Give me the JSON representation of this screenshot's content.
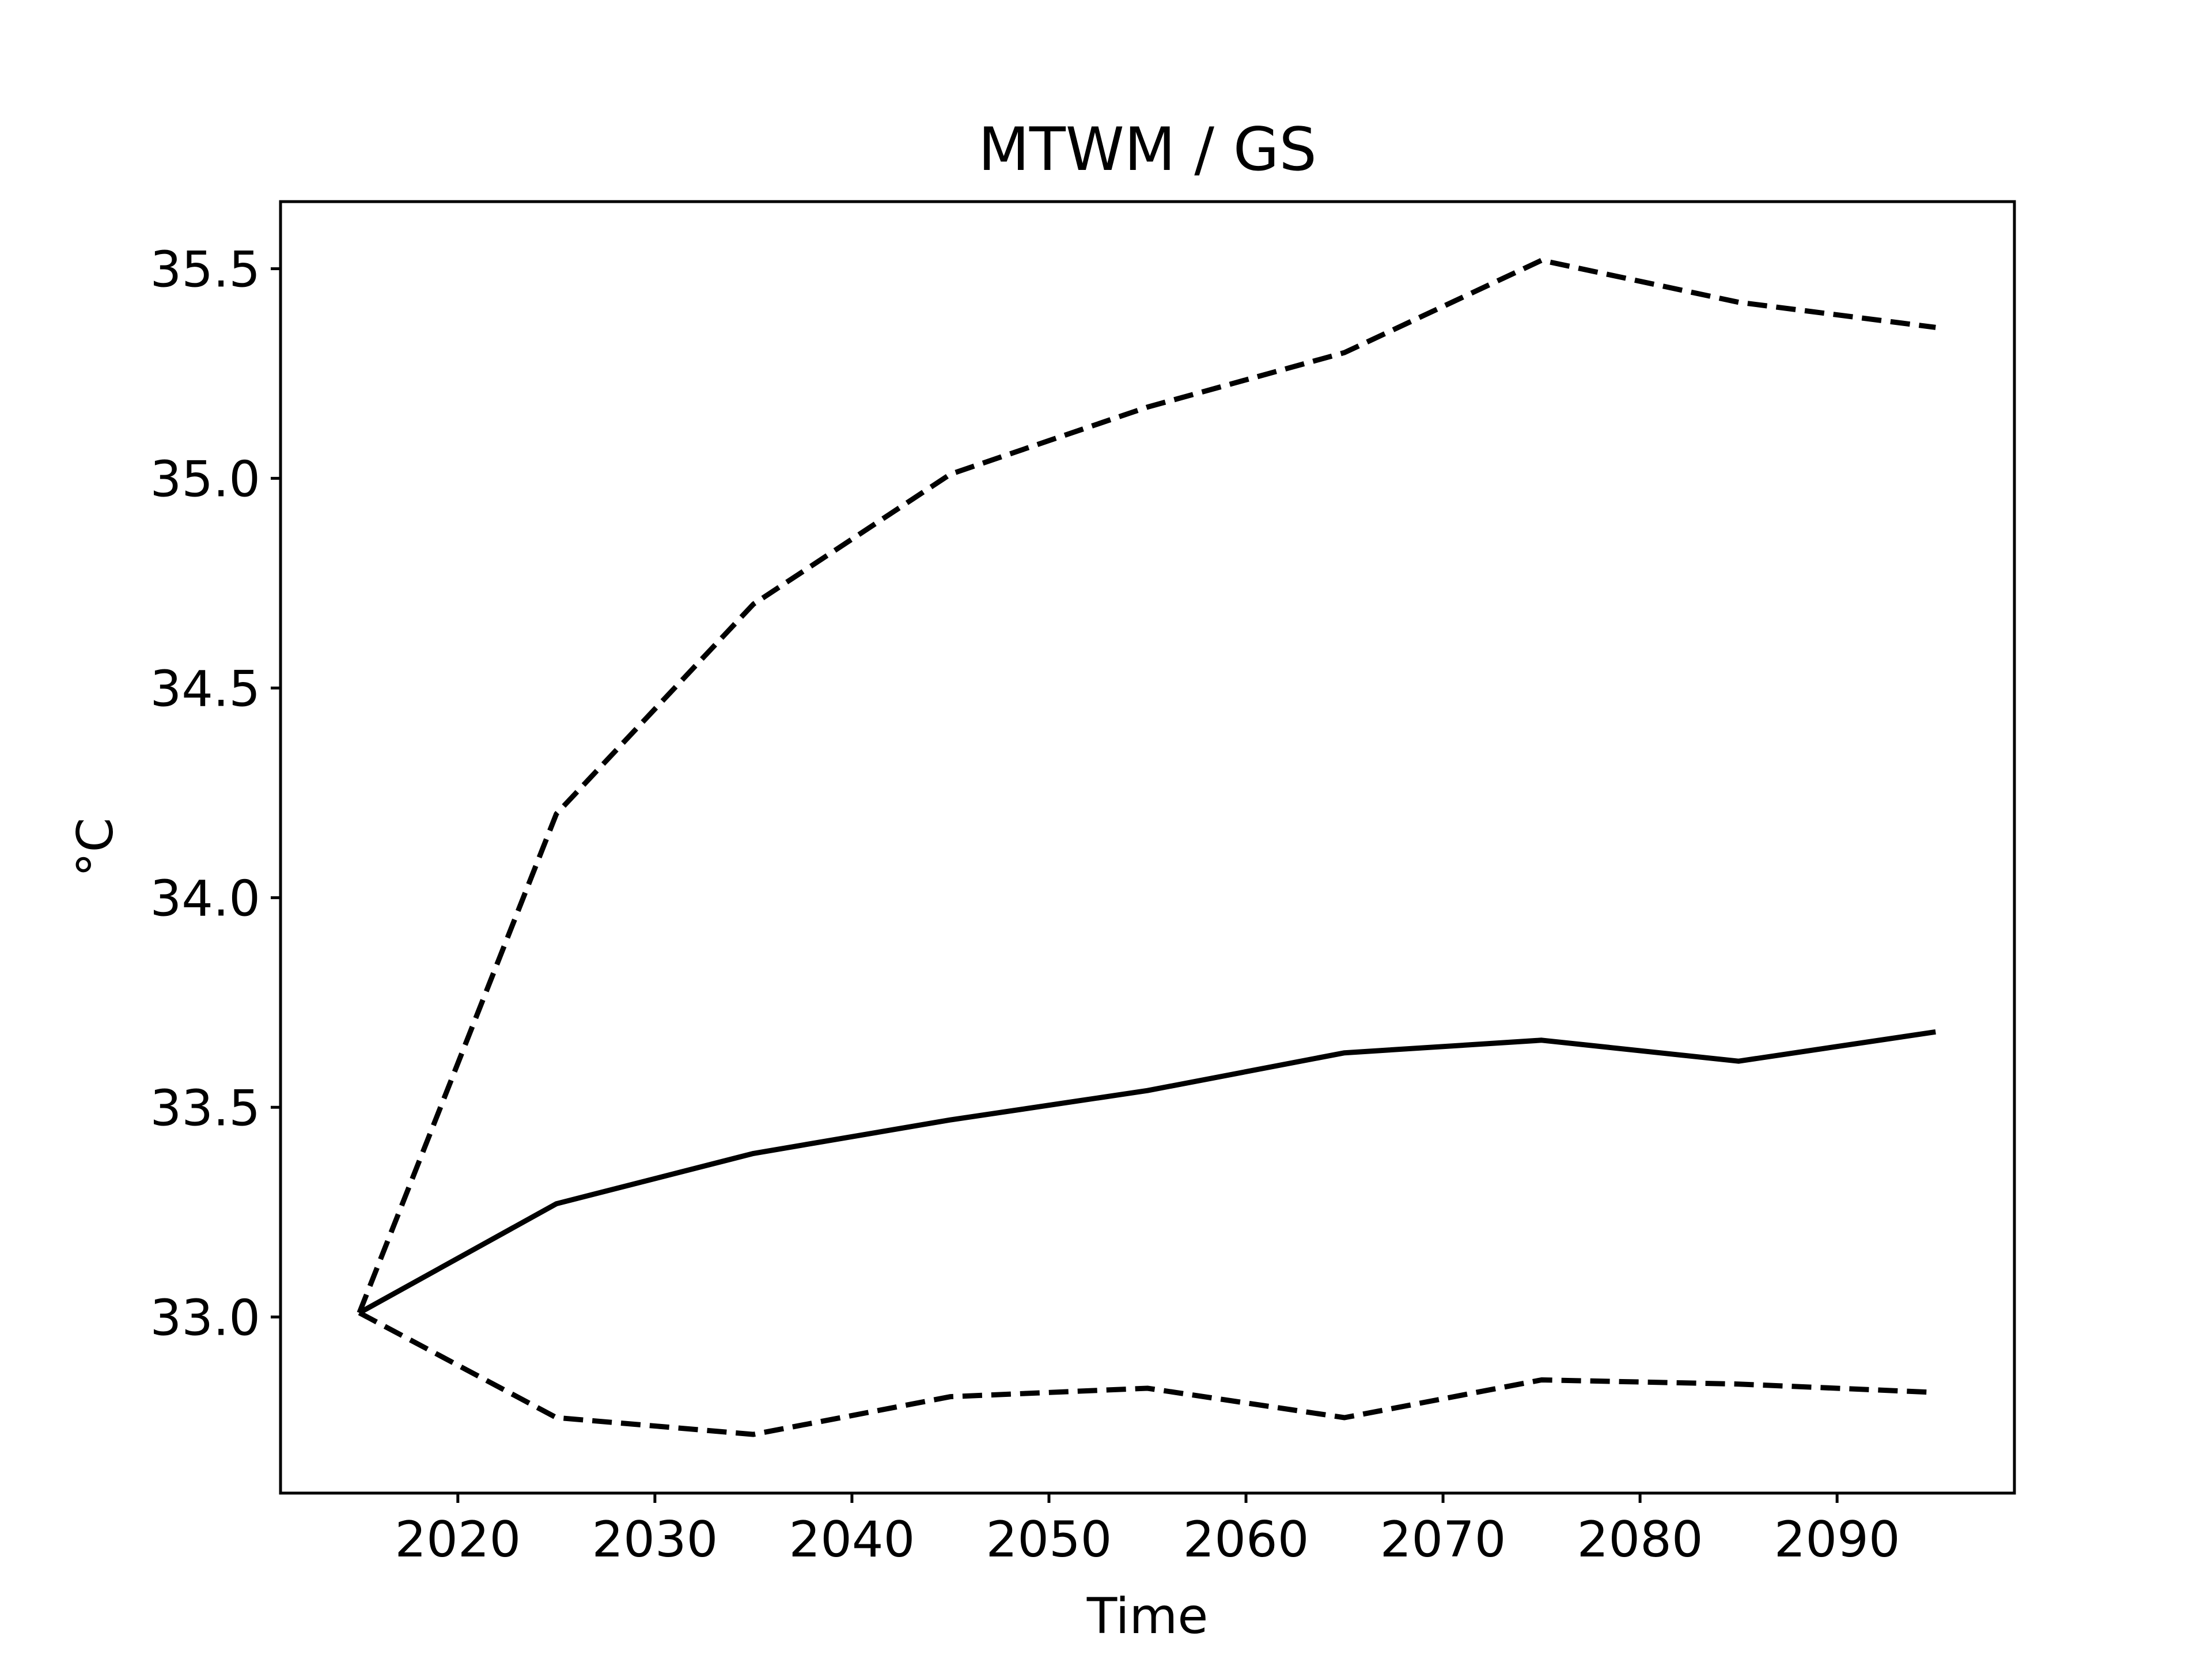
{
  "chart_data": {
    "type": "line",
    "title": "MTWM / GS",
    "xlabel": "Time",
    "ylabel": "°C",
    "x": [
      2015,
      2025,
      2035,
      2045,
      2055,
      2065,
      2075,
      2085,
      2095
    ],
    "xlim": [
      2011,
      2099
    ],
    "ylim": [
      32.58,
      35.66
    ],
    "xticks": [
      "2020",
      "2030",
      "2040",
      "2050",
      "2060",
      "2070",
      "2080",
      "2090"
    ],
    "yticks": [
      "33.0",
      "33.5",
      "34.0",
      "34.5",
      "35.0",
      "35.5"
    ],
    "grid": false,
    "series": [
      {
        "style": "solid",
        "color": "#000000",
        "values": [
          33.01,
          33.27,
          33.39,
          33.47,
          33.54,
          33.63,
          33.66,
          33.61,
          33.68
        ]
      },
      {
        "style": "dashed",
        "color": "#000000",
        "values": [
          33.01,
          34.2,
          34.7,
          35.01,
          35.17,
          35.3,
          35.52,
          35.42,
          35.36
        ]
      },
      {
        "style": "dashed",
        "color": "#000000",
        "values": [
          33.01,
          32.76,
          32.72,
          32.81,
          32.83,
          32.76,
          32.85,
          32.84,
          32.82
        ]
      }
    ]
  }
}
